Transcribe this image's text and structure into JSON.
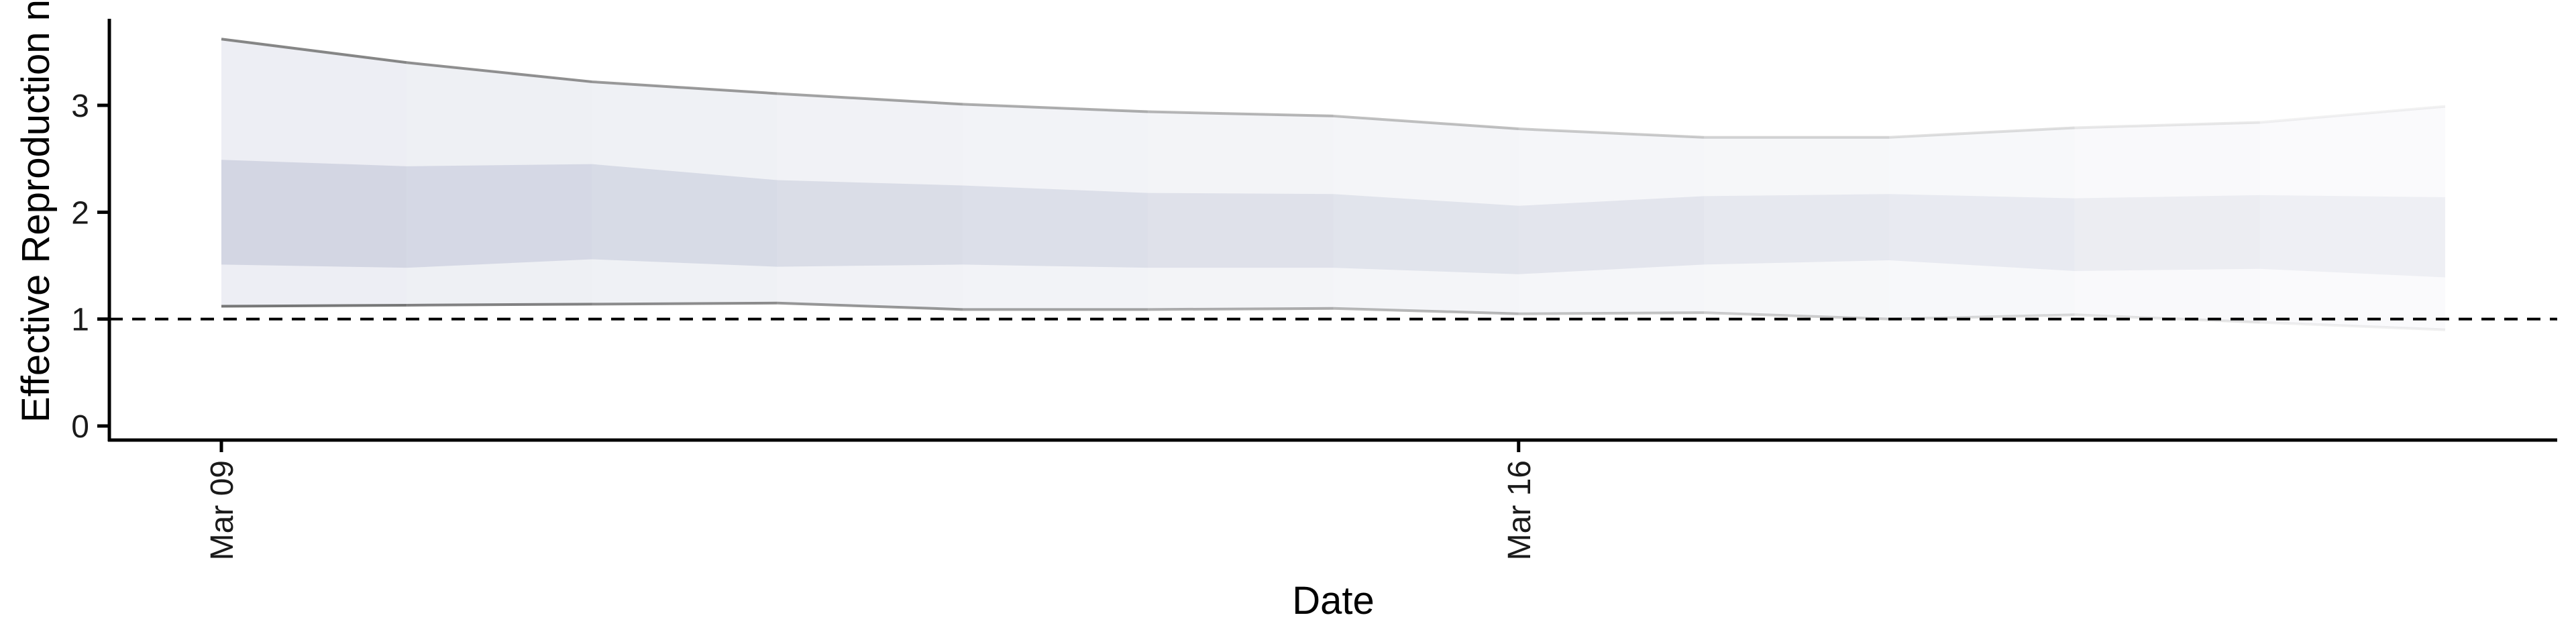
{
  "chart_data": {
    "type": "area",
    "title": "",
    "xlabel": "Date",
    "ylabel": "Effective Reproduction no.",
    "x": [
      "2020-03-09",
      "2020-03-10",
      "2020-03-11",
      "2020-03-12",
      "2020-03-13",
      "2020-03-14",
      "2020-03-15",
      "2020-03-16",
      "2020-03-17",
      "2020-03-18",
      "2020-03-19",
      "2020-03-20",
      "2020-03-21"
    ],
    "x_ticks": [
      "2020-03-09",
      "2020-03-16"
    ],
    "x_tick_labels": [
      "Mar 09",
      "Mar 16"
    ],
    "y_ticks": [
      0,
      1,
      2,
      3
    ],
    "ylim": [
      -0.1,
      3.8
    ],
    "reference_line": 1,
    "bands": {
      "outer_upper": [
        3.62,
        3.4,
        3.22,
        3.11,
        3.01,
        2.94,
        2.9,
        2.78,
        2.7,
        2.7,
        2.79,
        2.84,
        2.99
      ],
      "outer_lower": [
        1.12,
        1.13,
        1.14,
        1.15,
        1.09,
        1.09,
        1.1,
        1.05,
        1.06,
        1.0,
        1.04,
        0.97,
        0.9
      ],
      "inner_upper": [
        2.49,
        2.43,
        2.45,
        2.3,
        2.25,
        2.18,
        2.17,
        2.06,
        2.15,
        2.17,
        2.13,
        2.16,
        2.14
      ],
      "inner_lower": [
        1.51,
        1.48,
        1.56,
        1.49,
        1.51,
        1.48,
        1.48,
        1.42,
        1.51,
        1.55,
        1.45,
        1.47,
        1.39
      ]
    },
    "grid": false,
    "colors": {
      "band_base": "#b4bad0",
      "upper_line": "#808080",
      "lower_line": "#707070"
    }
  }
}
